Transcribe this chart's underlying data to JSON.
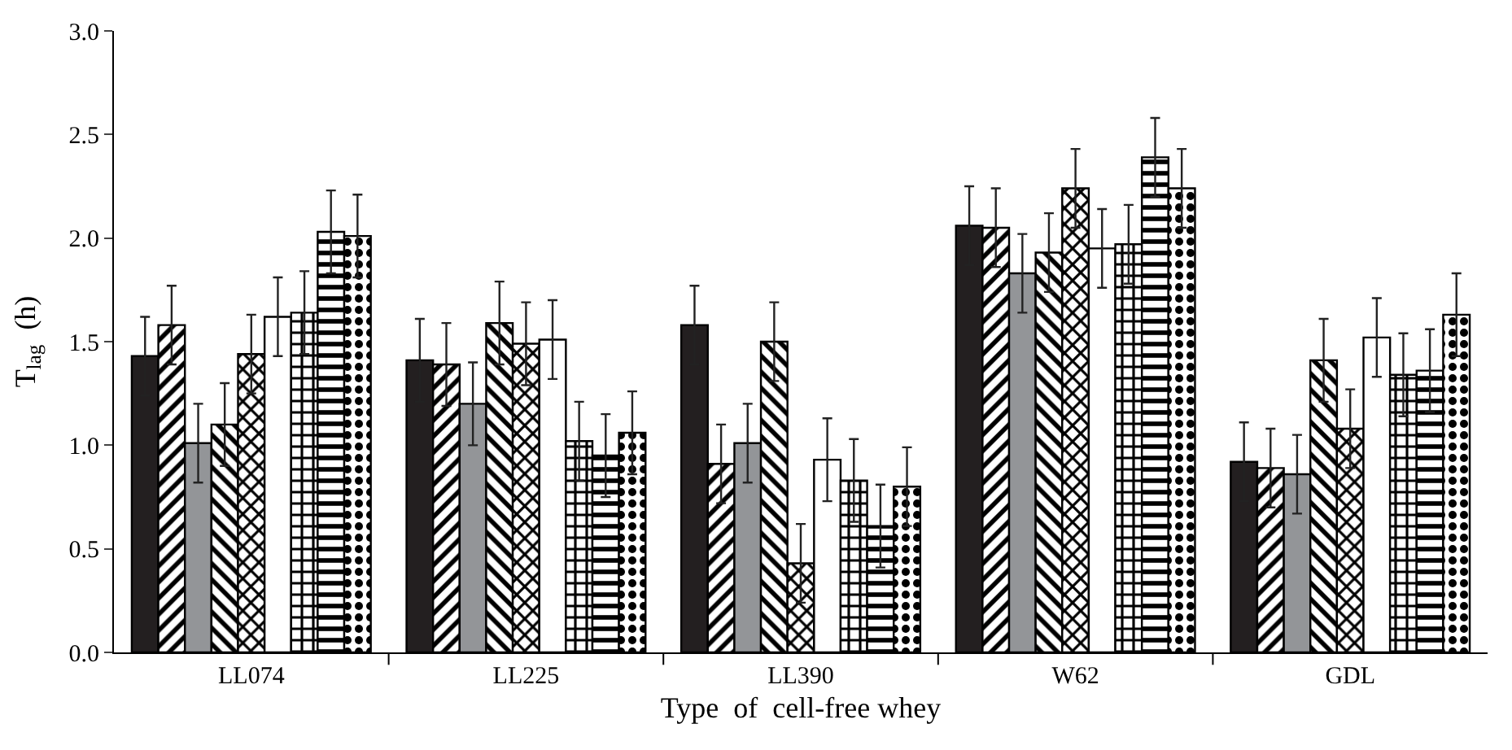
{
  "chart_data": {
    "type": "bar",
    "xlabel": "Type  of  cell-free whey",
    "ylabel": "T$_{lag}$  (h)",
    "categories": [
      "LL074",
      "LL225",
      "LL390",
      "W62",
      "GDL"
    ],
    "ylim": [
      0,
      3
    ],
    "yticks": [
      {
        "value": 0,
        "label": "0.0"
      },
      {
        "value": 0.5,
        "label": "0.5"
      },
      {
        "value": 1,
        "label": "1.0"
      },
      {
        "value": 1.5,
        "label": "1.5"
      },
      {
        "value": 2,
        "label": "2.0"
      },
      {
        "value": 2.5,
        "label": "2.5"
      },
      {
        "value": 3,
        "label": "3.0"
      }
    ],
    "series": [
      {
        "color": "#231f20",
        "values": [
          1.43,
          1.41,
          1.58,
          2.06,
          0.92
        ],
        "errors": [
          0.19,
          0.2,
          0.19,
          0.19,
          0.19
        ]
      },
      {
        "color": "#000000",
        "values": [
          1.58,
          1.39,
          0.91,
          2.05,
          0.89
        ],
        "errors": [
          0.19,
          0.2,
          0.19,
          0.19,
          0.19
        ]
      },
      {
        "color": "#939598",
        "values": [
          1.01,
          1.2,
          1.01,
          1.83,
          0.86
        ],
        "errors": [
          0.19,
          0.2,
          0.19,
          0.19,
          0.19
        ]
      },
      {
        "color": "#000000",
        "values": [
          1.1,
          1.59,
          1.5,
          1.93,
          1.41
        ],
        "errors": [
          0.2,
          0.2,
          0.19,
          0.19,
          0.2
        ]
      },
      {
        "color": "#000000",
        "values": [
          1.44,
          1.49,
          0.43,
          2.24,
          1.08
        ],
        "errors": [
          0.19,
          0.2,
          0.19,
          0.19,
          0.19
        ]
      },
      {
        "color": "#ffffff",
        "values": [
          1.62,
          1.51,
          0.93,
          1.95,
          1.52
        ],
        "errors": [
          0.19,
          0.19,
          0.2,
          0.19,
          0.19
        ]
      },
      {
        "color": "#000000",
        "values": [
          1.64,
          1.02,
          0.83,
          1.97,
          1.34
        ],
        "errors": [
          0.2,
          0.19,
          0.2,
          0.19,
          0.2
        ]
      },
      {
        "color": "#000000",
        "values": [
          2.03,
          0.95,
          0.61,
          2.39,
          1.36
        ],
        "errors": [
          0.2,
          0.2,
          0.2,
          0.19,
          0.2
        ]
      },
      {
        "color": "#000000",
        "values": [
          2.01,
          1.06,
          0.8,
          2.24,
          1.63
        ],
        "errors": [
          0.2,
          0.2,
          0.19,
          0.19,
          0.2
        ]
      }
    ]
  }
}
